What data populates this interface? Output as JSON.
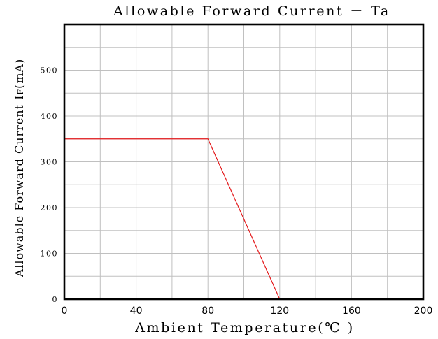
{
  "chart_data": {
    "type": "line",
    "title": "Allowable Forward Current － Ta",
    "xlabel": "Ambient Temperature(℃ )",
    "ylabel": "Allowable Forward Current I",
    "ylabel_sub": "F",
    "ylabel_unit": "(mA)",
    "xlim": [
      0,
      200
    ],
    "ylim": [
      0,
      600
    ],
    "x_ticks": [
      0,
      40,
      80,
      120,
      160,
      200
    ],
    "x_tick_labels": [
      "0",
      "40",
      "80",
      "120",
      "160",
      "200"
    ],
    "y_ticks": [
      0,
      100,
      200,
      300,
      400,
      500
    ],
    "y_tick_labels": [
      "0",
      "100",
      "200",
      "300",
      "400",
      "500"
    ],
    "grid": true,
    "x_grid_step": 20,
    "y_grid_step": 50,
    "line_color": "#e41a1c",
    "series": [
      {
        "x": [
          0,
          80,
          120
        ],
        "y": [
          350,
          350,
          0
        ]
      }
    ]
  }
}
